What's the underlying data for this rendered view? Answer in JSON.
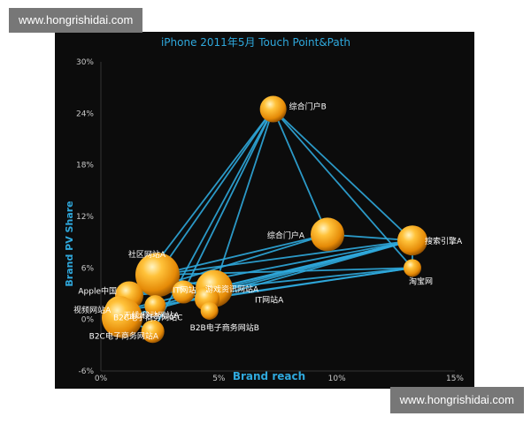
{
  "watermarks": {
    "top": "www.hongrishidai.com",
    "bottom": "www.hongrishidai.com"
  },
  "colors": {
    "background": "#0c0c0c",
    "line": "#2fa8dc",
    "bubble": "#f2a518",
    "axis_text": "#2fa8dc",
    "tick_text": "#c8c8c8",
    "label_text": "#ffffff"
  },
  "chart_data": {
    "type": "scatter",
    "title": "iPhone 2011年5月 Touch Point&Path",
    "xlabel": "Brand reach",
    "ylabel": "Brand PV Share",
    "xlim": [
      0,
      15
    ],
    "ylim": [
      -6,
      30
    ],
    "x_ticks": [
      {
        "value": 0,
        "label": "0%"
      },
      {
        "value": 5,
        "label": "5%"
      },
      {
        "value": 10,
        "label": "10%"
      },
      {
        "value": 15,
        "label": "15%"
      }
    ],
    "y_ticks": [
      {
        "value": 30,
        "label": "30%"
      },
      {
        "value": 24,
        "label": "24%"
      },
      {
        "value": 18,
        "label": "18%"
      },
      {
        "value": 12,
        "label": "12%"
      },
      {
        "value": 6,
        "label": "6%"
      },
      {
        "value": 0,
        "label": "0%"
      },
      {
        "value": -6,
        "label": "-6%"
      }
    ],
    "grid": false,
    "points": [
      {
        "label": "综合门户B",
        "x": 7.3,
        "y": 24.5,
        "size": 1.1
      },
      {
        "label": "综合门户A",
        "x": 9.6,
        "y": 9.9,
        "size": 1.5
      },
      {
        "label": "搜索引擎A",
        "x": 13.2,
        "y": 9.2,
        "size": 1.3
      },
      {
        "label": "淘宝网",
        "x": 13.2,
        "y": 6.0,
        "size": 0.6
      },
      {
        "label": "社区网站A",
        "x": 2.4,
        "y": 5.2,
        "size": 2.1
      },
      {
        "label": "Apple中国",
        "x": 1.2,
        "y": 2.8,
        "size": 1.2
      },
      {
        "label": "视频网站A",
        "x": 0.8,
        "y": 1.0,
        "size": 1.3
      },
      {
        "label": "B2C电子商务网站C",
        "x": 0.9,
        "y": 0.2,
        "size": 1.9
      },
      {
        "label": "B2C电子商务网站A",
        "x": 2.2,
        "y": -1.4,
        "size": 0.9
      },
      {
        "label": "无线/移动网站A",
        "x": 2.3,
        "y": 1.6,
        "size": 0.8
      },
      {
        "label": "IT网站",
        "x": 3.5,
        "y": 3.2,
        "size": 0.9
      },
      {
        "label": "游戏资讯网站A",
        "x": 4.8,
        "y": 3.6,
        "size": 1.7
      },
      {
        "label": "IT网站A",
        "x": 4.5,
        "y": 2.4,
        "size": 1.0
      },
      {
        "label": "B2B电子商务网站B",
        "x": 4.6,
        "y": 1.0,
        "size": 0.6
      }
    ],
    "edges": [
      [
        0,
        1
      ],
      [
        0,
        2
      ],
      [
        0,
        3
      ],
      [
        0,
        4
      ],
      [
        0,
        6
      ],
      [
        0,
        8
      ],
      [
        0,
        10
      ],
      [
        0,
        11
      ],
      [
        1,
        2
      ],
      [
        1,
        4
      ],
      [
        1,
        5
      ],
      [
        2,
        3
      ],
      [
        2,
        4
      ],
      [
        2,
        5
      ],
      [
        2,
        6
      ],
      [
        2,
        7
      ],
      [
        2,
        9
      ],
      [
        2,
        11
      ],
      [
        2,
        12
      ],
      [
        3,
        4
      ],
      [
        3,
        6
      ],
      [
        3,
        11
      ],
      [
        3,
        12
      ],
      [
        4,
        6
      ],
      [
        4,
        11
      ],
      [
        5,
        11
      ],
      [
        6,
        7
      ],
      [
        7,
        8
      ],
      [
        10,
        11
      ]
    ]
  }
}
